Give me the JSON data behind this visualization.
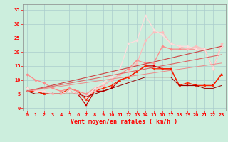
{
  "background_color": "#cceedd",
  "grid_color": "#aacccc",
  "x_label": "Vent moyen/en rafales ( km/h )",
  "x_ticks": [
    0,
    1,
    2,
    3,
    4,
    5,
    6,
    7,
    8,
    9,
    10,
    11,
    12,
    13,
    14,
    15,
    16,
    17,
    18,
    19,
    20,
    21,
    22,
    23
  ],
  "y_ticks": [
    0,
    5,
    10,
    15,
    20,
    25,
    30,
    35
  ],
  "ylim": [
    -1,
    37
  ],
  "xlim": [
    -0.5,
    23.5
  ],
  "lines": [
    {
      "x": [
        0,
        1,
        2,
        3,
        4,
        5,
        6,
        7,
        8,
        9,
        10,
        11,
        12,
        13,
        14,
        15,
        16,
        17,
        18,
        19,
        20,
        21,
        22,
        23
      ],
      "y": [
        7,
        6,
        5,
        5,
        5,
        6,
        5,
        1,
        6,
        6,
        7,
        10,
        11,
        13,
        15,
        15,
        14,
        14,
        8,
        8,
        8,
        8,
        8,
        12
      ],
      "color": "#cc0000",
      "lw": 0.9,
      "marker": "s",
      "ms": 1.8
    },
    {
      "x": [
        0,
        1,
        2,
        3,
        4,
        5,
        6,
        7,
        8,
        9,
        10,
        11,
        12,
        13,
        14,
        15,
        16,
        17,
        18,
        19,
        20,
        21,
        22,
        23
      ],
      "y": [
        6,
        6,
        5,
        5,
        5,
        7,
        6,
        3,
        6,
        7,
        8,
        10,
        11,
        13,
        15,
        14,
        14,
        14,
        8,
        9,
        8,
        8,
        8,
        12
      ],
      "color": "#ff2200",
      "lw": 0.9,
      "marker": "^",
      "ms": 1.8
    },
    {
      "x": [
        0,
        1,
        2,
        3,
        4,
        5,
        6,
        7,
        8,
        9,
        10,
        11,
        12,
        13,
        14,
        15,
        16,
        17,
        18,
        19,
        20,
        21,
        22,
        23
      ],
      "y": [
        12,
        10,
        9,
        7,
        6,
        7,
        6,
        5,
        7,
        8,
        10,
        12,
        14,
        17,
        16,
        16,
        22,
        21,
        21,
        21,
        21,
        21,
        14,
        22
      ],
      "color": "#ff8888",
      "lw": 0.9,
      "marker": "D",
      "ms": 1.8
    },
    {
      "x": [
        0,
        1,
        2,
        3,
        4,
        5,
        6,
        7,
        8,
        9,
        10,
        11,
        12,
        13,
        14,
        15,
        16,
        17,
        18,
        19,
        20,
        21,
        22,
        23
      ],
      "y": [
        7,
        6,
        6,
        5,
        5,
        6,
        5,
        4,
        6,
        8,
        10,
        12,
        13,
        16,
        24,
        27,
        27,
        23,
        22,
        21,
        22,
        21,
        14,
        23
      ],
      "color": "#ffbbbb",
      "lw": 0.9,
      "marker": "D",
      "ms": 1.8
    },
    {
      "x": [
        0,
        1,
        2,
        3,
        4,
        5,
        6,
        7,
        8,
        9,
        10,
        11,
        12,
        13,
        14,
        15,
        16,
        17,
        18,
        19,
        20,
        21,
        22,
        23
      ],
      "y": [
        7,
        6,
        6,
        5,
        5,
        6,
        5,
        4,
        7,
        9,
        11,
        14,
        23,
        24,
        33,
        28,
        26,
        23,
        22,
        22,
        21,
        21,
        14,
        22
      ],
      "color": "#ffdddd",
      "lw": 0.9,
      "marker": "D",
      "ms": 1.8
    },
    {
      "x": [
        0,
        1,
        2,
        3,
        4,
        5,
        6,
        7,
        8,
        9,
        10,
        11,
        12,
        13,
        14,
        15,
        16,
        17,
        18,
        19,
        20,
        21,
        22,
        23
      ],
      "y": [
        6,
        5,
        5,
        5,
        5,
        5,
        5,
        4,
        5,
        6,
        7,
        8,
        9,
        10,
        11,
        11,
        11,
        11,
        8,
        8,
        8,
        7,
        7,
        8
      ],
      "color": "#990000",
      "lw": 0.7,
      "marker": null,
      "ms": 0
    },
    {
      "x": [
        0,
        23
      ],
      "y": [
        6,
        22
      ],
      "color": "#cc4444",
      "lw": 0.8,
      "marker": null,
      "ms": 0
    },
    {
      "x": [
        0,
        23
      ],
      "y": [
        6,
        19
      ],
      "color": "#dd6666",
      "lw": 0.8,
      "marker": null,
      "ms": 0
    },
    {
      "x": [
        0,
        23
      ],
      "y": [
        6,
        16
      ],
      "color": "#ee8888",
      "lw": 0.7,
      "marker": null,
      "ms": 0
    }
  ],
  "tick_fontsize": 5.0,
  "axis_fontsize": 6.0
}
